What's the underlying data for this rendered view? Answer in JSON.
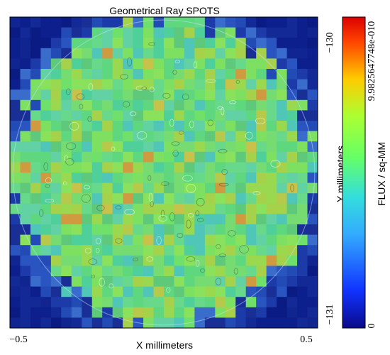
{
  "chart_data": {
    "type": "heatmap",
    "title": "Geometrical Ray SPOTS",
    "xlabel": "X millimeters",
    "ylabel": "Y millimeters",
    "x_ticks": [
      "−0.5",
      "0.5"
    ],
    "y_ticks": [
      "−130",
      "−131"
    ],
    "xlim": [
      -0.5,
      0.5
    ],
    "ylim": [
      -131,
      -130
    ],
    "colorbar": {
      "label": "FLUX / sq-MM",
      "min_label": "0",
      "max_label": "9.9825647748e-010",
      "min": 0,
      "max": 9.9825647748e-10
    },
    "spot_shape": "circle",
    "background_color": "#0c1f8c",
    "dominant_color": "#6fe06a"
  }
}
